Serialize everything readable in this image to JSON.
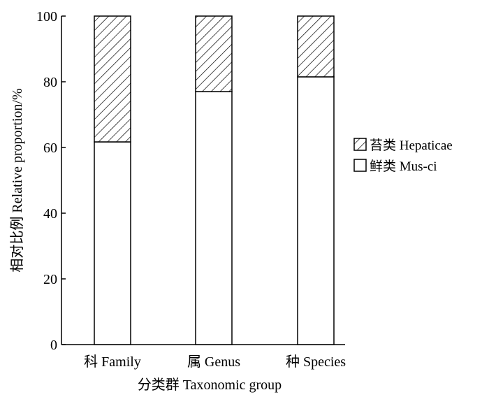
{
  "chart_data": {
    "type": "bar",
    "stacked": true,
    "categories": [
      "科 Family",
      "属 Genus",
      "种 Species"
    ],
    "series": [
      {
        "name": "鲜类 Mus-ci",
        "values": [
          61.7,
          77.0,
          81.5
        ],
        "pattern": "none",
        "fill": "#ffffff"
      },
      {
        "name": "苔类 Hepaticae",
        "values": [
          38.3,
          23.0,
          18.5
        ],
        "pattern": "diagonal-hatch",
        "fill": "#ffffff"
      }
    ],
    "title": "",
    "xlabel": "分类群 Taxonomic group",
    "ylabel": "相对比例 Relative proportion/%",
    "ylim": [
      0,
      100
    ],
    "yticks": [
      0,
      20,
      40,
      60,
      80,
      100
    ],
    "legend_order": [
      "苔类 Hepaticae",
      "鲜类 Mus-ci"
    ],
    "legend_position": "right",
    "grid": false,
    "colors": {
      "stroke": "#000000",
      "background": "#ffffff"
    }
  }
}
